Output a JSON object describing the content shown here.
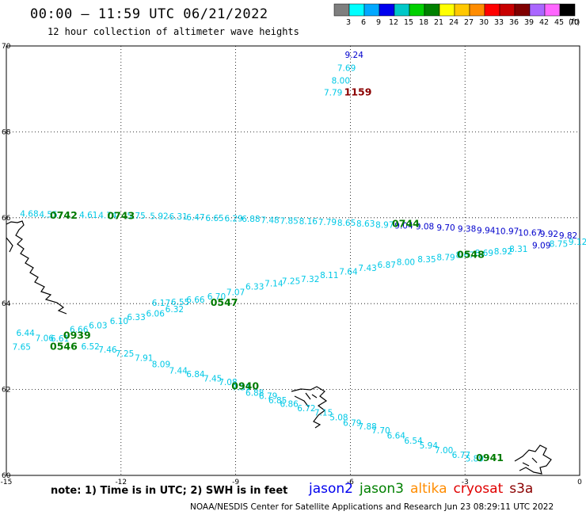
{
  "header": {
    "title": "00:00 – 11:59 UTC 06/21/2022",
    "subtitle": "12 hour collection of altimeter wave heights"
  },
  "colorbar": {
    "unit": "(ft)",
    "bins": [
      {
        "color": "#7f7f7f",
        "label": "3"
      },
      {
        "color": "#00ffff",
        "label": "6"
      },
      {
        "color": "#00a8ff",
        "label": "9"
      },
      {
        "color": "#0000ee",
        "label": "12"
      },
      {
        "color": "#00c8c8",
        "label": "15"
      },
      {
        "color": "#00d000",
        "label": "18"
      },
      {
        "color": "#008000",
        "label": "21"
      },
      {
        "color": "#ffff00",
        "label": "24"
      },
      {
        "color": "#ffc800",
        "label": "27"
      },
      {
        "color": "#ff8c00",
        "label": "30"
      },
      {
        "color": "#ff0000",
        "label": "33"
      },
      {
        "color": "#c80000",
        "label": "36"
      },
      {
        "color": "#800000",
        "label": "39"
      },
      {
        "color": "#aa66ff",
        "label": "42"
      },
      {
        "color": "#ff66ff",
        "label": "45"
      },
      {
        "color": "#000000",
        "label": "70"
      }
    ]
  },
  "map": {
    "lon_range": [
      -15,
      0
    ],
    "lat_range": [
      60,
      70
    ],
    "lon_ticks": [
      "-15",
      "-12",
      "-9",
      "-6",
      "-3",
      "0"
    ],
    "lat_ticks": [
      "70",
      "68",
      "66",
      "64",
      "62",
      "60"
    ],
    "grid": "dotted",
    "colors": {
      "cyan": "#00c8e6",
      "blue": "#0000cc",
      "green": "#007a00",
      "darkred": "#8b0000"
    }
  },
  "tracks": [
    {
      "name": "track-north",
      "points": [
        {
          "lon": -5.9,
          "lat": 69.72,
          "v": "9.24",
          "c": "blue"
        },
        {
          "lon": -6.1,
          "lat": 69.42,
          "v": "7.69",
          "c": "cyan"
        },
        {
          "lon": -6.25,
          "lat": 69.12,
          "v": "8.00",
          "c": "cyan"
        },
        {
          "lon": -6.45,
          "lat": 68.85,
          "v": "7.79",
          "c": "cyan"
        }
      ],
      "times": [
        {
          "lon": -5.8,
          "lat": 68.85,
          "t": "1159",
          "c": "darkred"
        }
      ]
    },
    {
      "name": "track-66n",
      "points": [
        {
          "lon": -14.4,
          "lat": 66.02,
          "v": "4.68",
          "c": "cyan"
        },
        {
          "lon": -13.9,
          "lat": 66.01,
          "v": "4.55",
          "c": "cyan"
        },
        {
          "lon": -12.85,
          "lat": 66.0,
          "v": "4.61",
          "c": "cyan"
        },
        {
          "lon": -12.35,
          "lat": 65.99,
          "v": "4.74",
          "c": "cyan"
        },
        {
          "lon": -11.6,
          "lat": 65.98,
          "v": "5.75",
          "c": "cyan"
        },
        {
          "lon": -11.0,
          "lat": 65.97,
          "v": "5.92",
          "c": "cyan"
        },
        {
          "lon": -10.5,
          "lat": 65.96,
          "v": "6.31",
          "c": "cyan"
        },
        {
          "lon": -10.05,
          "lat": 65.94,
          "v": "6.47",
          "c": "cyan"
        },
        {
          "lon": -9.55,
          "lat": 65.92,
          "v": "6.65",
          "c": "cyan"
        },
        {
          "lon": -9.05,
          "lat": 65.91,
          "v": "6.29",
          "c": "cyan"
        },
        {
          "lon": -8.6,
          "lat": 65.9,
          "v": "6.88",
          "c": "cyan"
        },
        {
          "lon": -8.1,
          "lat": 65.88,
          "v": "7.48",
          "c": "cyan"
        },
        {
          "lon": -7.6,
          "lat": 65.86,
          "v": "7.85",
          "c": "cyan"
        },
        {
          "lon": -7.1,
          "lat": 65.85,
          "v": "8.16",
          "c": "cyan"
        },
        {
          "lon": -6.6,
          "lat": 65.83,
          "v": "7.79",
          "c": "cyan"
        },
        {
          "lon": -6.1,
          "lat": 65.81,
          "v": "8.65",
          "c": "cyan"
        },
        {
          "lon": -5.6,
          "lat": 65.79,
          "v": "8.63",
          "c": "cyan"
        },
        {
          "lon": -5.1,
          "lat": 65.77,
          "v": "8.97",
          "c": "cyan"
        },
        {
          "lon": -4.6,
          "lat": 65.75,
          "v": "9.04",
          "c": "blue"
        },
        {
          "lon": -4.05,
          "lat": 65.73,
          "v": "9.08",
          "c": "blue"
        },
        {
          "lon": -3.5,
          "lat": 65.7,
          "v": "9.70",
          "c": "blue"
        },
        {
          "lon": -2.95,
          "lat": 65.67,
          "v": "9.38",
          "c": "blue"
        },
        {
          "lon": -2.45,
          "lat": 65.64,
          "v": "9.94",
          "c": "blue"
        },
        {
          "lon": -1.9,
          "lat": 65.62,
          "v": "10.97",
          "c": "blue"
        },
        {
          "lon": -1.3,
          "lat": 65.58,
          "v": "10.67",
          "c": "blue"
        },
        {
          "lon": -0.8,
          "lat": 65.55,
          "v": "9.92",
          "c": "blue"
        },
        {
          "lon": -0.3,
          "lat": 65.52,
          "v": "9.82",
          "c": "blue"
        }
      ],
      "times": [
        {
          "lon": -13.5,
          "lat": 65.98,
          "t": "0742",
          "c": "green"
        },
        {
          "lon": -12.0,
          "lat": 65.97,
          "t": "0743",
          "c": "green"
        },
        {
          "lon": -4.55,
          "lat": 65.78,
          "t": "0744",
          "c": "green"
        }
      ]
    },
    {
      "name": "track-64n",
      "points": [
        {
          "lon": -10.95,
          "lat": 63.95,
          "v": "6.17",
          "c": "cyan"
        },
        {
          "lon": -10.45,
          "lat": 63.97,
          "v": "6.55",
          "c": "cyan"
        },
        {
          "lon": -10.05,
          "lat": 64.02,
          "v": "6.66",
          "c": "cyan"
        },
        {
          "lon": -9.5,
          "lat": 64.1,
          "v": "6.70",
          "c": "cyan"
        },
        {
          "lon": -9.0,
          "lat": 64.2,
          "v": "7.07",
          "c": "cyan"
        },
        {
          "lon": -8.5,
          "lat": 64.33,
          "v": "6.33",
          "c": "cyan"
        },
        {
          "lon": -8.0,
          "lat": 64.4,
          "v": "7.14",
          "c": "cyan"
        },
        {
          "lon": -7.55,
          "lat": 64.46,
          "v": "7.25",
          "c": "cyan"
        },
        {
          "lon": -7.05,
          "lat": 64.5,
          "v": "7.32",
          "c": "cyan"
        },
        {
          "lon": -6.55,
          "lat": 64.59,
          "v": "8.11",
          "c": "cyan"
        },
        {
          "lon": -6.05,
          "lat": 64.68,
          "v": "7.64",
          "c": "cyan"
        },
        {
          "lon": -5.55,
          "lat": 64.76,
          "v": "7.43",
          "c": "cyan"
        },
        {
          "lon": -5.05,
          "lat": 64.83,
          "v": "6.87",
          "c": "cyan"
        },
        {
          "lon": -4.55,
          "lat": 64.9,
          "v": "8.00",
          "c": "cyan"
        },
        {
          "lon": -4.0,
          "lat": 64.96,
          "v": "8.35",
          "c": "cyan"
        },
        {
          "lon": -3.5,
          "lat": 65.01,
          "v": "8.79",
          "c": "cyan"
        },
        {
          "lon": -3.0,
          "lat": 65.06,
          "v": "8.67",
          "c": "cyan"
        },
        {
          "lon": -2.5,
          "lat": 65.11,
          "v": "8.69",
          "c": "cyan"
        },
        {
          "lon": -2.0,
          "lat": 65.15,
          "v": "8.92",
          "c": "cyan"
        },
        {
          "lon": -1.6,
          "lat": 65.2,
          "v": "8.31",
          "c": "cyan"
        },
        {
          "lon": -1.0,
          "lat": 65.29,
          "v": "9.09",
          "c": "blue"
        },
        {
          "lon": -0.55,
          "lat": 65.32,
          "v": "8.75",
          "c": "cyan"
        },
        {
          "lon": -0.05,
          "lat": 65.37,
          "v": "9.12",
          "c": "cyan"
        }
      ],
      "times": [
        {
          "lon": -9.3,
          "lat": 63.95,
          "t": "0547",
          "c": "green"
        },
        {
          "lon": -2.85,
          "lat": 65.06,
          "t": "0548",
          "c": "green"
        }
      ]
    },
    {
      "name": "track-63n",
      "points": [
        {
          "lon": -14.5,
          "lat": 63.25,
          "v": "6.44",
          "c": "cyan"
        },
        {
          "lon": -14.0,
          "lat": 63.13,
          "v": "7.06",
          "c": "cyan"
        },
        {
          "lon": -13.6,
          "lat": 63.12,
          "v": "6.61",
          "c": "cyan"
        },
        {
          "lon": -13.1,
          "lat": 63.33,
          "v": "6.66",
          "c": "cyan"
        },
        {
          "lon": -12.6,
          "lat": 63.42,
          "v": "6.03",
          "c": "cyan"
        },
        {
          "lon": -12.05,
          "lat": 63.52,
          "v": "6.10",
          "c": "cyan"
        },
        {
          "lon": -11.6,
          "lat": 63.62,
          "v": "6.33",
          "c": "cyan"
        },
        {
          "lon": -11.1,
          "lat": 63.7,
          "v": "6.06",
          "c": "cyan"
        },
        {
          "lon": -10.6,
          "lat": 63.8,
          "v": "6.32",
          "c": "cyan"
        }
      ],
      "times": [
        {
          "lon": -13.15,
          "lat": 63.18,
          "t": "0939",
          "c": "green"
        }
      ]
    },
    {
      "name": "track-southeast",
      "points": [
        {
          "lon": -14.6,
          "lat": 62.92,
          "v": "7.65",
          "c": "cyan"
        },
        {
          "lon": -12.8,
          "lat": 62.93,
          "v": "6.52",
          "c": "cyan"
        },
        {
          "lon": -12.35,
          "lat": 62.86,
          "v": "7.46",
          "c": "cyan"
        },
        {
          "lon": -11.9,
          "lat": 62.77,
          "v": "7.25",
          "c": "cyan"
        },
        {
          "lon": -11.4,
          "lat": 62.67,
          "v": "7.91",
          "c": "cyan"
        },
        {
          "lon": -10.95,
          "lat": 62.52,
          "v": "8.09",
          "c": "cyan"
        },
        {
          "lon": -10.5,
          "lat": 62.37,
          "v": "7.44",
          "c": "cyan"
        },
        {
          "lon": -10.05,
          "lat": 62.29,
          "v": "6.84",
          "c": "cyan"
        },
        {
          "lon": -9.6,
          "lat": 62.19,
          "v": "7.45",
          "c": "cyan"
        },
        {
          "lon": -9.2,
          "lat": 62.1,
          "v": "7.08",
          "c": "cyan"
        },
        {
          "lon": -8.85,
          "lat": 61.98,
          "v": "7.31",
          "c": "cyan"
        },
        {
          "lon": -8.5,
          "lat": 61.85,
          "v": "6.88",
          "c": "cyan"
        },
        {
          "lon": -8.15,
          "lat": 61.78,
          "v": "6.79",
          "c": "cyan"
        },
        {
          "lon": -7.9,
          "lat": 61.68,
          "v": "6.85",
          "c": "cyan"
        },
        {
          "lon": -7.6,
          "lat": 61.6,
          "v": "6.86",
          "c": "cyan"
        },
        {
          "lon": -7.15,
          "lat": 61.49,
          "v": "6.72",
          "c": "cyan"
        },
        {
          "lon": -6.7,
          "lat": 61.39,
          "v": "7.15",
          "c": "cyan"
        },
        {
          "lon": -6.3,
          "lat": 61.28,
          "v": "5.08",
          "c": "cyan"
        },
        {
          "lon": -5.95,
          "lat": 61.15,
          "v": "6.79",
          "c": "cyan"
        },
        {
          "lon": -5.55,
          "lat": 61.07,
          "v": "7.88",
          "c": "cyan"
        },
        {
          "lon": -5.2,
          "lat": 60.98,
          "v": "7.70",
          "c": "cyan"
        },
        {
          "lon": -4.8,
          "lat": 60.86,
          "v": "6.64",
          "c": "cyan"
        },
        {
          "lon": -4.35,
          "lat": 60.74,
          "v": "6.54",
          "c": "cyan"
        },
        {
          "lon": -3.95,
          "lat": 60.63,
          "v": "5.94",
          "c": "cyan"
        },
        {
          "lon": -3.55,
          "lat": 60.52,
          "v": "7.00",
          "c": "cyan"
        },
        {
          "lon": -3.1,
          "lat": 60.41,
          "v": "6.77",
          "c": "cyan"
        },
        {
          "lon": -2.75,
          "lat": 60.32,
          "v": "5.89",
          "c": "cyan"
        }
      ],
      "times": [
        {
          "lon": -13.5,
          "lat": 62.92,
          "t": "0546",
          "c": "green"
        },
        {
          "lon": -8.75,
          "lat": 62.0,
          "t": "0940",
          "c": "green"
        },
        {
          "lon": -2.35,
          "lat": 60.33,
          "t": "0941",
          "c": "green"
        }
      ]
    }
  ],
  "footer": {
    "note": "note:  1) Time is in UTC;  2) SWH is in feet",
    "satellites": [
      {
        "name": "jason2",
        "color": "#0000ee"
      },
      {
        "name": "jason3",
        "color": "#008000"
      },
      {
        "name": "altika",
        "color": "#ff8c00"
      },
      {
        "name": "cryosat",
        "color": "#e00000"
      },
      {
        "name": "s3a",
        "color": "#8b0000"
      }
    ],
    "credit": "NOAA/NESDIS Center for Satellite Applications and Research    Jun 23 08:29:11 UTC 2022"
  }
}
